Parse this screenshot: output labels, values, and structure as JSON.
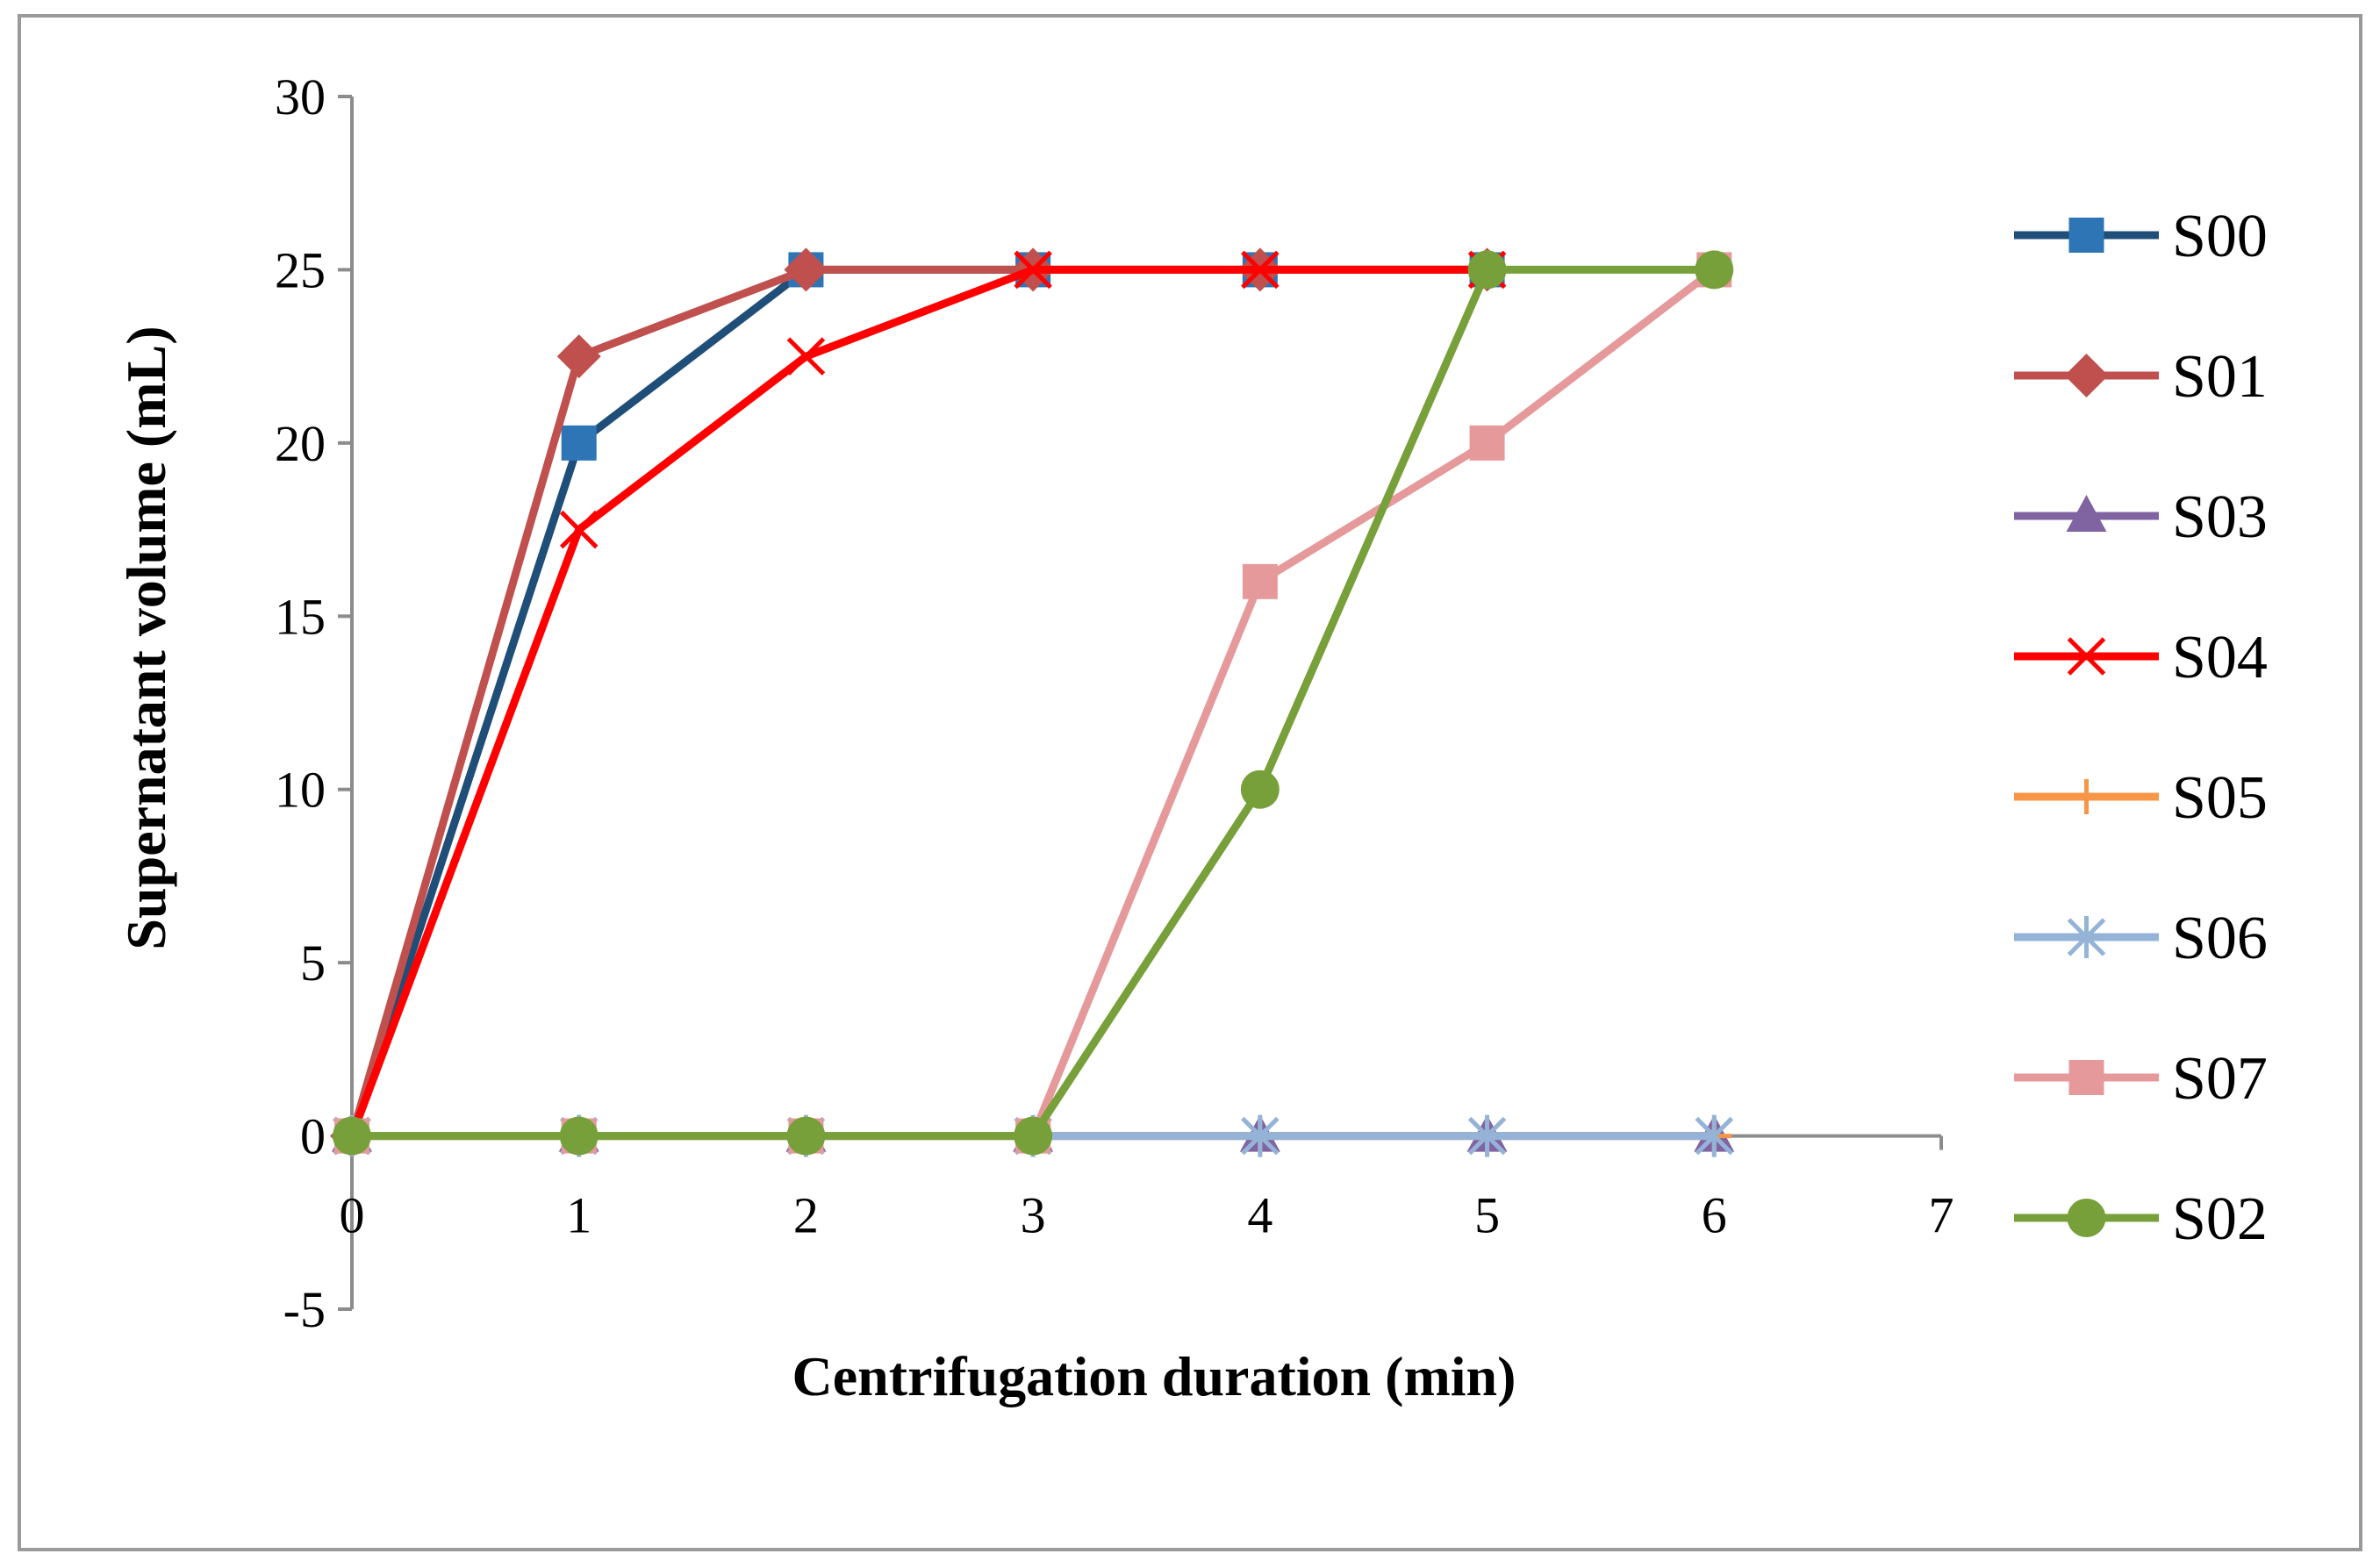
{
  "chart_data": {
    "type": "line",
    "xlabel": "Centrifugation duration (min)",
    "ylabel": "Supernatant volume (mL)",
    "xlim": [
      0,
      7
    ],
    "ylim": [
      -5,
      30
    ],
    "xticks": [
      0,
      1,
      2,
      3,
      4,
      5,
      6,
      7
    ],
    "yticks": [
      -5,
      0,
      5,
      10,
      15,
      20,
      25,
      30
    ],
    "grid": false,
    "legend_position": "right",
    "x": [
      0,
      1,
      2,
      3,
      4,
      5,
      6
    ],
    "series": [
      {
        "name": "S00",
        "color": "#1f4e79",
        "marker_color": "#2e75b6",
        "marker": "square",
        "values": [
          0,
          20,
          25,
          25,
          25,
          25,
          null
        ]
      },
      {
        "name": "S01",
        "color": "#c0504d",
        "marker_color": "#c0504d",
        "marker": "diamond",
        "values": [
          0,
          22.5,
          25,
          25,
          25,
          25,
          null
        ]
      },
      {
        "name": "S03",
        "color": "#8064a2",
        "marker_color": "#8064a2",
        "marker": "triangle",
        "values": [
          0,
          0,
          0,
          0,
          0,
          0,
          0
        ]
      },
      {
        "name": "S04",
        "color": "#ff0000",
        "marker_color": "#ff0000",
        "marker": "x",
        "values": [
          0,
          17.5,
          22.5,
          25,
          25,
          25,
          null
        ]
      },
      {
        "name": "S05",
        "color": "#f79646",
        "marker_color": "#f79646",
        "marker": "plus",
        "values": [
          0,
          0,
          0,
          0,
          0,
          0,
          0
        ]
      },
      {
        "name": "S06",
        "color": "#95b3d7",
        "marker_color": "#95b3d7",
        "marker": "asterisk",
        "values": [
          0,
          0,
          0,
          0,
          0,
          0,
          0
        ]
      },
      {
        "name": "S07",
        "color": "#e6999a",
        "marker_color": "#e6999a",
        "marker": "square",
        "values": [
          0,
          0,
          0,
          0,
          16,
          20,
          25
        ]
      },
      {
        "name": "S02",
        "color": "#77a03a",
        "marker_color": "#77a03a",
        "marker": "circle",
        "values": [
          0,
          0,
          0,
          0,
          10,
          25,
          25
        ]
      }
    ]
  }
}
